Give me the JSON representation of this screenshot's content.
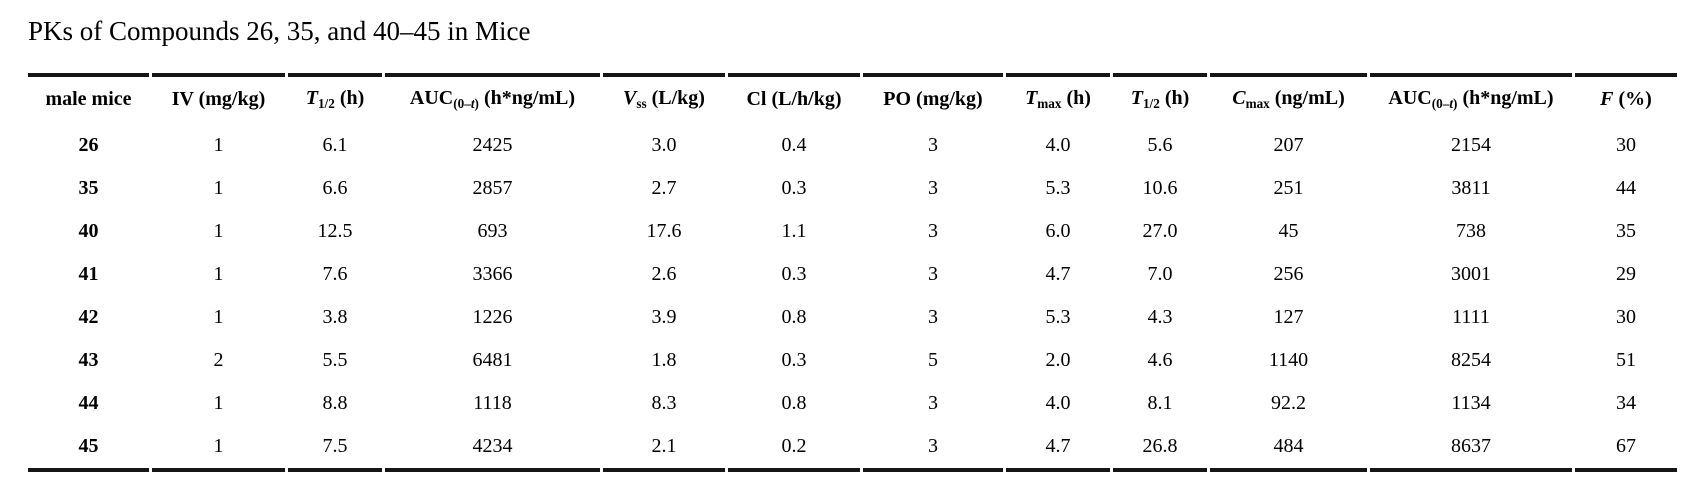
{
  "title": "PKs of Compounds 26, 35, and 40–45 in Mice",
  "colors": {
    "text": "#000000",
    "rule": "#161616",
    "background": "#ffffff"
  },
  "table": {
    "header": [
      {
        "name": "male mice",
        "parts": [
          {
            "t": "male mice"
          }
        ]
      },
      {
        "name": "IV (mg/kg)",
        "parts": [
          {
            "t": "IV (mg/kg)"
          }
        ]
      },
      {
        "name": "T1/2 (h) iv",
        "parts": [
          {
            "t": "T",
            "s": "i"
          },
          {
            "t": "1/2",
            "s": "sub"
          },
          {
            "t": " (h)"
          }
        ]
      },
      {
        "name": "AUC(0–t) (h*ng/mL) iv",
        "parts": [
          {
            "t": "AUC"
          },
          {
            "t": "(0–",
            "s": "sub"
          },
          {
            "t": "t",
            "s": "subi"
          },
          {
            "t": ")",
            "s": "sub"
          },
          {
            "t": " (h*ng/mL)"
          }
        ]
      },
      {
        "name": "Vss (L/kg)",
        "parts": [
          {
            "t": "V",
            "s": "i"
          },
          {
            "t": "ss",
            "s": "sub"
          },
          {
            "t": " (L/kg)"
          }
        ]
      },
      {
        "name": "Cl (L/h/kg)",
        "parts": [
          {
            "t": "Cl (L/h/kg)"
          }
        ]
      },
      {
        "name": "PO (mg/kg)",
        "parts": [
          {
            "t": "PO (mg/kg)"
          }
        ]
      },
      {
        "name": "Tmax (h)",
        "parts": [
          {
            "t": "T",
            "s": "i"
          },
          {
            "t": "max",
            "s": "sub"
          },
          {
            "t": " (h)"
          }
        ]
      },
      {
        "name": "T1/2 (h) po",
        "parts": [
          {
            "t": "T",
            "s": "i"
          },
          {
            "t": "1/2",
            "s": "sub"
          },
          {
            "t": " (h)"
          }
        ]
      },
      {
        "name": "Cmax (ng/mL)",
        "parts": [
          {
            "t": "C",
            "s": "i"
          },
          {
            "t": "max",
            "s": "sub"
          },
          {
            "t": " (ng/mL)"
          }
        ]
      },
      {
        "name": "AUC(0–t) (h*ng/mL) po",
        "parts": [
          {
            "t": "AUC"
          },
          {
            "t": "(0–",
            "s": "sub"
          },
          {
            "t": "t",
            "s": "subi"
          },
          {
            "t": ")",
            "s": "sub"
          },
          {
            "t": " (h*ng/mL)"
          }
        ]
      },
      {
        "name": "F (%)",
        "parts": [
          {
            "t": "F",
            "s": "i"
          },
          {
            "t": " (%)"
          }
        ]
      }
    ],
    "rows": [
      [
        "26",
        "1",
        "6.1",
        "2425",
        "3.0",
        "0.4",
        "3",
        "4.0",
        "5.6",
        "207",
        "2154",
        "30"
      ],
      [
        "35",
        "1",
        "6.6",
        "2857",
        "2.7",
        "0.3",
        "3",
        "5.3",
        "10.6",
        "251",
        "3811",
        "44"
      ],
      [
        "40",
        "1",
        "12.5",
        "693",
        "17.6",
        "1.1",
        "3",
        "6.0",
        "27.0",
        "45",
        "738",
        "35"
      ],
      [
        "41",
        "1",
        "7.6",
        "3366",
        "2.6",
        "0.3",
        "3",
        "4.7",
        "7.0",
        "256",
        "3001",
        "29"
      ],
      [
        "42",
        "1",
        "3.8",
        "1226",
        "3.9",
        "0.8",
        "3",
        "5.3",
        "4.3",
        "127",
        "1111",
        "30"
      ],
      [
        "43",
        "2",
        "5.5",
        "6481",
        "1.8",
        "0.3",
        "5",
        "2.0",
        "4.6",
        "1140",
        "8254",
        "51"
      ],
      [
        "44",
        "1",
        "8.8",
        "1118",
        "8.3",
        "0.8",
        "3",
        "4.0",
        "8.1",
        "92.2",
        "1134",
        "34"
      ],
      [
        "45",
        "1",
        "7.5",
        "4234",
        "2.1",
        "0.2",
        "3",
        "4.7",
        "26.8",
        "484",
        "8637",
        "67"
      ]
    ]
  }
}
